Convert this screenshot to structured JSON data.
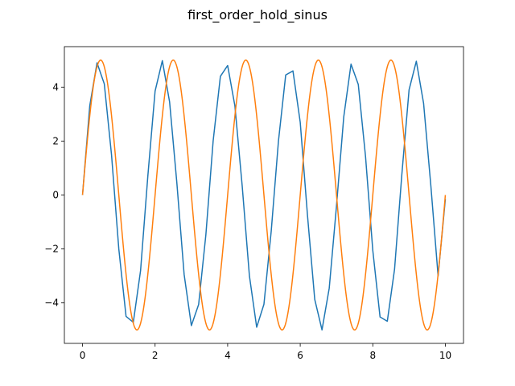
{
  "chart_data": {
    "type": "line",
    "title": "first_order_hold_sinus",
    "xlabel": "",
    "ylabel": "",
    "xlim": [
      -0.5,
      10.5
    ],
    "ylim": [
      -5.5,
      5.5
    ],
    "xticks": [
      0,
      2,
      4,
      6,
      8,
      10
    ],
    "yticks": [
      -4,
      -2,
      0,
      2,
      4
    ],
    "ytick_labels": [
      "−4",
      "−2",
      "0",
      "2",
      "4"
    ],
    "grid": false,
    "legend": "none",
    "series": [
      {
        "color": "#1f77b4",
        "style": "piecewise-linear (first-order hold)",
        "x": [
          0,
          0.2,
          0.4,
          0.6,
          0.8,
          1.0,
          1.2,
          1.4,
          1.6,
          1.8,
          2.0,
          2.2,
          2.4,
          2.6,
          2.8,
          3.0,
          3.2,
          3.4,
          3.6,
          3.8,
          4.0,
          4.2,
          4.4,
          4.6,
          4.8,
          5.0,
          5.2,
          5.4,
          5.6,
          5.8,
          6.0,
          6.2,
          6.4,
          6.6,
          6.8,
          7.0,
          7.2,
          7.4,
          7.6,
          7.8,
          8.0,
          8.2,
          8.4,
          8.6,
          8.8,
          9.0,
          9.2,
          9.4,
          9.6,
          9.8,
          10.0
        ],
        "y": [
          0,
          3.31,
          4.9,
          4.12,
          1.48,
          -2.0,
          -4.5,
          -4.72,
          -2.8,
          0.7,
          3.85,
          4.98,
          3.45,
          0.45,
          -2.94,
          -4.84,
          -4.06,
          -1.47,
          2.0,
          4.4,
          4.8,
          3.3,
          0.35,
          -3.0,
          -4.9,
          -4.05,
          -1.35,
          2.0,
          4.45,
          4.6,
          2.7,
          -0.75,
          -3.87,
          -5.0,
          -3.45,
          -0.4,
          2.9,
          4.85,
          4.1,
          1.43,
          -2.05,
          -4.52,
          -4.68,
          -2.75,
          0.75,
          3.9,
          4.96,
          3.4,
          0.35,
          -3.0,
          -0.15
        ]
      },
      {
        "color": "#ff7f0e",
        "style": "continuous sinus",
        "amplitude": 5,
        "period": 2,
        "x_start": 0,
        "x_end": 10
      }
    ]
  }
}
